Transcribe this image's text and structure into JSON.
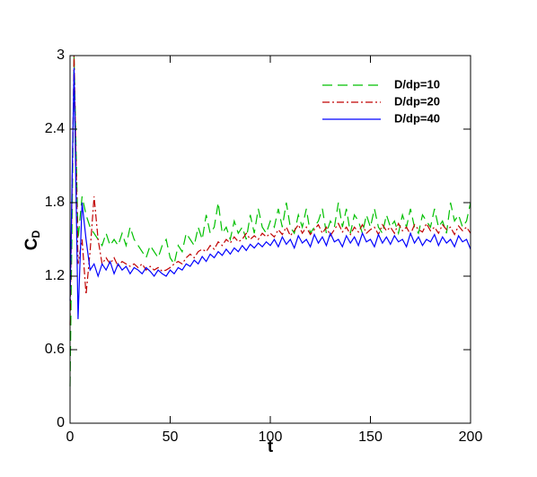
{
  "chart_data": {
    "type": "line",
    "xlabel": "t",
    "ylabel": "C",
    "ylabel_sub": "D",
    "x": [
      0,
      2,
      4,
      6,
      8,
      10,
      12,
      14,
      16,
      18,
      20,
      22,
      24,
      26,
      28,
      30,
      32,
      34,
      36,
      38,
      40,
      42,
      44,
      46,
      48,
      50,
      52,
      54,
      56,
      58,
      60,
      62,
      64,
      66,
      68,
      70,
      72,
      74,
      76,
      78,
      80,
      82,
      84,
      86,
      88,
      90,
      92,
      94,
      96,
      98,
      100,
      102,
      104,
      106,
      108,
      110,
      112,
      114,
      116,
      118,
      120,
      122,
      124,
      126,
      128,
      130,
      132,
      134,
      136,
      138,
      140,
      142,
      144,
      146,
      148,
      150,
      152,
      154,
      156,
      158,
      160,
      162,
      164,
      166,
      168,
      170,
      172,
      174,
      176,
      178,
      180,
      182,
      184,
      186,
      188,
      190,
      192,
      194,
      196,
      198,
      200
    ],
    "series": [
      {
        "name": "D/dp=10",
        "color": "#00c000",
        "dash": "11,6",
        "values": [
          0.3,
          3.0,
          1.5,
          1.85,
          1.7,
          1.6,
          1.55,
          1.5,
          1.45,
          1.55,
          1.45,
          1.5,
          1.45,
          1.55,
          1.45,
          1.6,
          1.5,
          1.45,
          1.4,
          1.35,
          1.45,
          1.4,
          1.35,
          1.45,
          1.5,
          1.35,
          1.3,
          1.45,
          1.4,
          1.55,
          1.5,
          1.45,
          1.6,
          1.5,
          1.7,
          1.55,
          1.6,
          1.8,
          1.55,
          1.6,
          1.5,
          1.65,
          1.55,
          1.6,
          1.5,
          1.7,
          1.55,
          1.75,
          1.6,
          1.55,
          1.65,
          1.6,
          1.75,
          1.6,
          1.8,
          1.6,
          1.55,
          1.7,
          1.6,
          1.75,
          1.55,
          1.6,
          1.65,
          1.75,
          1.55,
          1.65,
          1.6,
          1.8,
          1.6,
          1.75,
          1.55,
          1.7,
          1.65,
          1.55,
          1.7,
          1.6,
          1.75,
          1.6,
          1.55,
          1.7,
          1.6,
          1.65,
          1.55,
          1.7,
          1.6,
          1.75,
          1.6,
          1.55,
          1.7,
          1.65,
          1.6,
          1.75,
          1.6,
          1.65,
          1.55,
          1.8,
          1.65,
          1.7,
          1.6,
          1.65,
          1.8
        ]
      },
      {
        "name": "D/dp=20",
        "color": "#c00000",
        "dash": "8,3,2,3",
        "values": [
          0.8,
          3.0,
          1.3,
          1.5,
          1.05,
          1.4,
          1.85,
          1.5,
          1.3,
          1.35,
          1.3,
          1.35,
          1.28,
          1.32,
          1.3,
          1.28,
          1.3,
          1.27,
          1.3,
          1.25,
          1.28,
          1.25,
          1.27,
          1.24,
          1.25,
          1.27,
          1.3,
          1.32,
          1.3,
          1.35,
          1.38,
          1.35,
          1.4,
          1.42,
          1.4,
          1.45,
          1.42,
          1.48,
          1.45,
          1.5,
          1.47,
          1.52,
          1.48,
          1.5,
          1.55,
          1.5,
          1.53,
          1.5,
          1.55,
          1.52,
          1.55,
          1.52,
          1.58,
          1.54,
          1.6,
          1.53,
          1.57,
          1.62,
          1.55,
          1.6,
          1.54,
          1.58,
          1.62,
          1.55,
          1.6,
          1.53,
          1.58,
          1.63,
          1.56,
          1.6,
          1.54,
          1.6,
          1.56,
          1.62,
          1.55,
          1.58,
          1.6,
          1.54,
          1.62,
          1.57,
          1.6,
          1.55,
          1.63,
          1.57,
          1.6,
          1.54,
          1.62,
          1.58,
          1.56,
          1.63,
          1.57,
          1.6,
          1.55,
          1.62,
          1.58,
          1.6,
          1.54,
          1.61,
          1.57,
          1.6,
          1.55
        ]
      },
      {
        "name": "D/dp=40",
        "color": "#0000ff",
        "dash": "none",
        "values": [
          1.0,
          2.9,
          0.85,
          1.8,
          1.5,
          1.25,
          1.3,
          1.2,
          1.3,
          1.25,
          1.32,
          1.22,
          1.3,
          1.25,
          1.28,
          1.22,
          1.27,
          1.25,
          1.22,
          1.27,
          1.24,
          1.2,
          1.25,
          1.22,
          1.2,
          1.25,
          1.22,
          1.27,
          1.25,
          1.3,
          1.28,
          1.33,
          1.3,
          1.36,
          1.32,
          1.38,
          1.35,
          1.4,
          1.37,
          1.42,
          1.38,
          1.43,
          1.4,
          1.45,
          1.41,
          1.46,
          1.43,
          1.47,
          1.44,
          1.48,
          1.45,
          1.5,
          1.44,
          1.52,
          1.46,
          1.5,
          1.43,
          1.53,
          1.47,
          1.5,
          1.44,
          1.54,
          1.47,
          1.52,
          1.45,
          1.55,
          1.48,
          1.5,
          1.44,
          1.53,
          1.47,
          1.52,
          1.45,
          1.55,
          1.48,
          1.5,
          1.44,
          1.54,
          1.47,
          1.52,
          1.46,
          1.53,
          1.48,
          1.5,
          1.44,
          1.55,
          1.47,
          1.52,
          1.45,
          1.5,
          1.48,
          1.54,
          1.45,
          1.52,
          1.47,
          1.5,
          1.44,
          1.53,
          1.48,
          1.5,
          1.42
        ]
      }
    ],
    "xlim": [
      0,
      200
    ],
    "xticks": [
      0,
      50,
      100,
      150,
      200
    ],
    "ylim": [
      0,
      3
    ],
    "yticks": [
      0,
      0.6,
      1.2,
      1.8,
      2.4,
      3
    ],
    "legend": "upper right",
    "grid": false
  }
}
